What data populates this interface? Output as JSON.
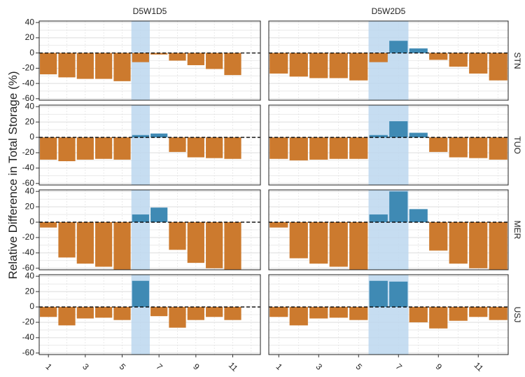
{
  "chart_data": {
    "type": "bar",
    "ylabel": "Relative Difference in Total Storage (%)",
    "columns": [
      "D5W1D5",
      "D5W2D5"
    ],
    "rows": [
      "STN",
      "TUO",
      "MER",
      "USJ"
    ],
    "x": [
      1,
      2,
      3,
      4,
      5,
      6,
      7,
      8,
      9,
      10,
      11,
      12
    ],
    "x_tick_labels": [
      "1",
      "3",
      "5",
      "7",
      "9",
      "11"
    ],
    "x_tick_values": [
      1,
      3,
      5,
      7,
      9,
      11
    ],
    "ylim": [
      -62,
      42
    ],
    "y_ticks": [
      40,
      20,
      0,
      -20,
      -40,
      -60
    ],
    "y_tick_labels": [
      "40",
      "20",
      "0",
      "-20",
      "-40",
      "-60"
    ],
    "grid": true,
    "shaded_x": {
      "D5W1D5": [
        6,
        6
      ],
      "D5W2D5": [
        6,
        7
      ]
    },
    "colors": {
      "negative": "#cc7a2e",
      "positive": "#3f8ab4",
      "shade": "#bcd7ef",
      "grid": "#dddddd",
      "zero_line": "#000000"
    },
    "panels": [
      {
        "row": "STN",
        "column": "D5W1D5",
        "values": [
          -28,
          -32,
          -34,
          -34,
          -37,
          -12,
          -2,
          -10,
          -16,
          -21,
          -29,
          null
        ]
      },
      {
        "row": "STN",
        "column": "D5W2D5",
        "values": [
          -27,
          -31,
          -33,
          -33,
          -36,
          -12,
          16,
          6,
          -9,
          -18,
          -27,
          -36
        ]
      },
      {
        "row": "TUO",
        "column": "D5W1D5",
        "values": [
          -29,
          -31,
          -29,
          -28,
          -29,
          3,
          5,
          -19,
          -26,
          -27,
          -28,
          null
        ]
      },
      {
        "row": "TUO",
        "column": "D5W2D5",
        "values": [
          -28,
          -30,
          -29,
          -28,
          -28,
          3,
          21,
          6,
          -19,
          -26,
          -27,
          -29
        ]
      },
      {
        "row": "MER",
        "column": "D5W1D5",
        "values": [
          -7,
          -46,
          -54,
          -58,
          -62,
          10,
          19,
          -36,
          -53,
          -60,
          -62,
          null
        ]
      },
      {
        "row": "MER",
        "column": "D5W2D5",
        "values": [
          -7,
          -47,
          -54,
          -58,
          -62,
          10,
          40,
          17,
          -37,
          -54,
          -60,
          -62
        ]
      },
      {
        "row": "USJ",
        "column": "D5W1D5",
        "values": [
          -13,
          -24,
          -15,
          -14,
          -17,
          34,
          -12,
          -27,
          -17,
          -13,
          -17,
          null
        ]
      },
      {
        "row": "USJ",
        "column": "D5W2D5",
        "values": [
          -13,
          -24,
          -15,
          -14,
          -17,
          34,
          33,
          -20,
          -28,
          -18,
          -13,
          -17
        ]
      }
    ]
  }
}
